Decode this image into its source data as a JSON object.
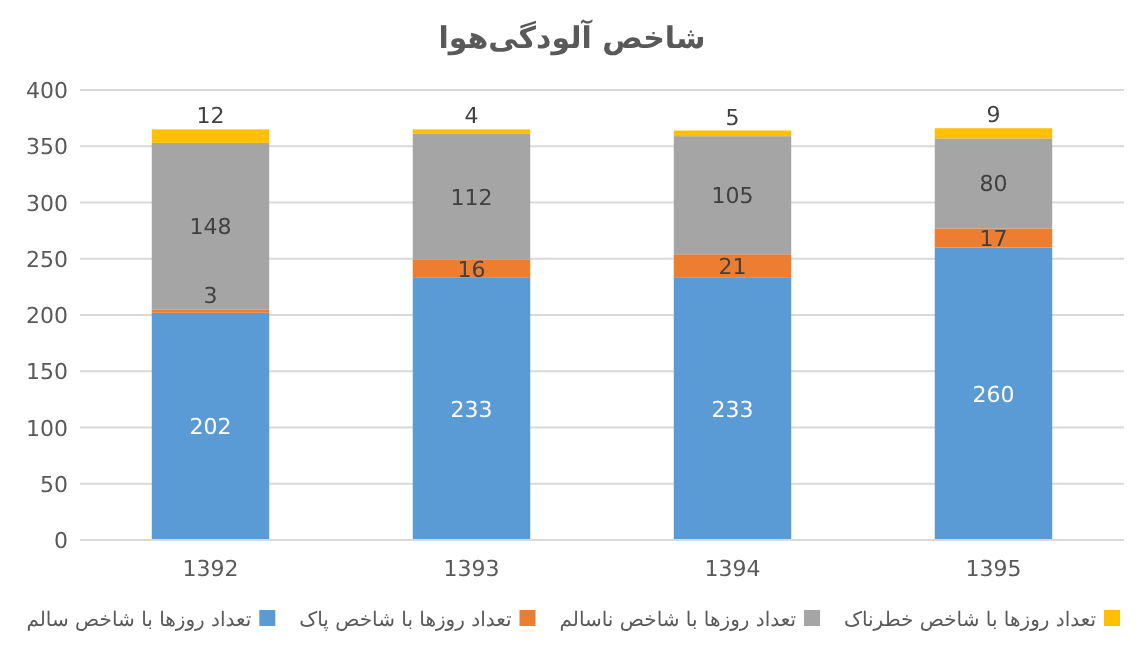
{
  "chart_data": {
    "type": "bar",
    "title": "شاخص آلودگی‌هوا",
    "categories": [
      "1392",
      "1393",
      "1394",
      "1395"
    ],
    "stacked": true,
    "series": [
      {
        "name": "تعداد روزها با شاخص سالم",
        "color": "#5b9bd5",
        "values": [
          202,
          233,
          233,
          260
        ]
      },
      {
        "name": "تعداد روزها با شاخص پاک",
        "color": "#ed7d31",
        "values": [
          3,
          16,
          21,
          17
        ]
      },
      {
        "name": "تعداد روزها با شاخص ناسالم",
        "color": "#a5a5a5",
        "values": [
          148,
          112,
          105,
          80
        ]
      },
      {
        "name": "تعداد روزها با شاخص خطرناک",
        "color": "#ffc000",
        "values": [
          12,
          4,
          5,
          9
        ]
      }
    ],
    "ylim": [
      0,
      400
    ],
    "yticks": [
      0,
      50,
      100,
      150,
      200,
      250,
      300,
      350,
      400
    ],
    "grid": "y",
    "legend": "bottom",
    "data_labels": true
  }
}
